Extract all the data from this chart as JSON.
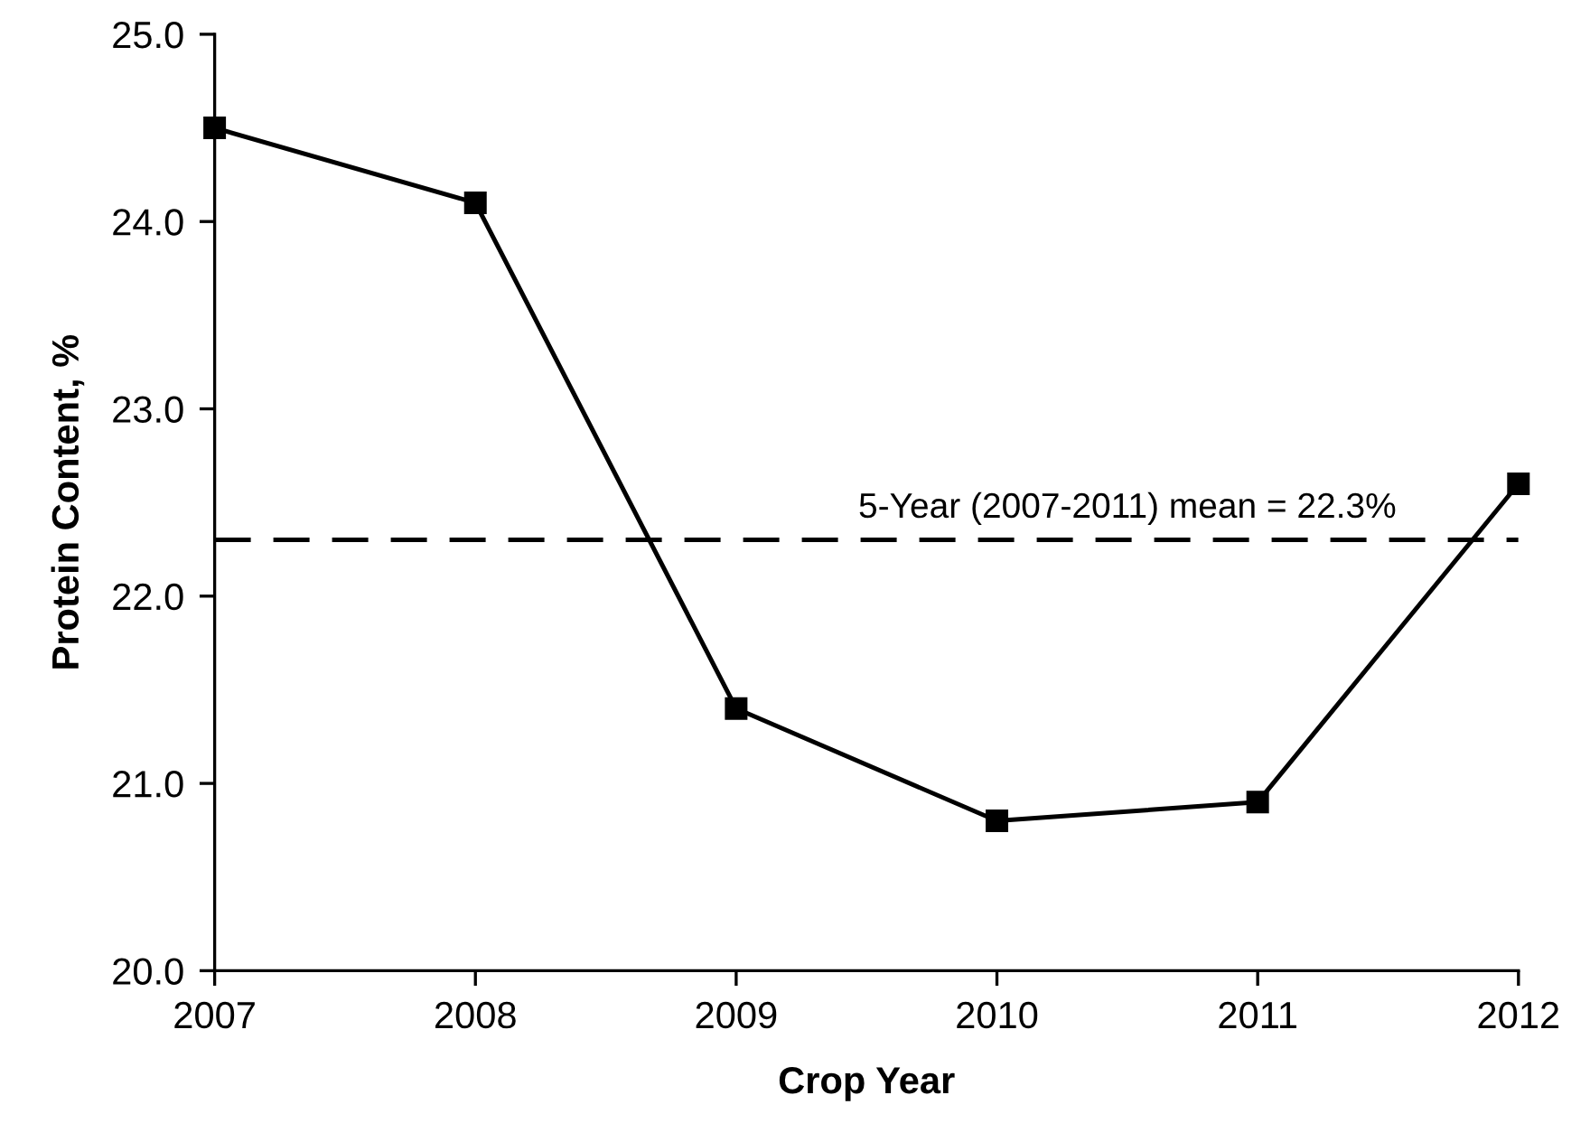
{
  "chart_data": {
    "type": "line",
    "xlabel": "Crop Year",
    "ylabel": "Protein Content, %",
    "x": [
      2007,
      2008,
      2009,
      2010,
      2011,
      2012
    ],
    "series": [
      {
        "color": "#000000",
        "values": [
          24.5,
          24.1,
          21.4,
          20.8,
          20.9,
          22.6
        ]
      }
    ],
    "xlim": [
      2007,
      2012
    ],
    "xticks": [
      {
        "value": 2007,
        "label": "2007"
      },
      {
        "value": 2008,
        "label": "2008"
      },
      {
        "value": 2009,
        "label": "2009"
      },
      {
        "value": 2010,
        "label": "2010"
      },
      {
        "value": 2011,
        "label": "2011"
      },
      {
        "value": 2012,
        "label": "2012"
      }
    ],
    "ylim": [
      20,
      25
    ],
    "yticks": [
      {
        "value": 20,
        "label": "20.0"
      },
      {
        "value": 21,
        "label": "21.0"
      },
      {
        "value": 22,
        "label": "22.0"
      },
      {
        "value": 23,
        "label": "23.0"
      },
      {
        "value": 24,
        "label": "24.0"
      },
      {
        "value": 25,
        "label": "25.0"
      }
    ],
    "ref_lines": [
      {
        "axis": "y",
        "value": 22.3,
        "label": "5-Year (2007-2011) mean = 22.3%",
        "color": "#000000",
        "line_style": "dashed"
      }
    ],
    "marker": "square",
    "line_style": "solid",
    "grid": false
  }
}
